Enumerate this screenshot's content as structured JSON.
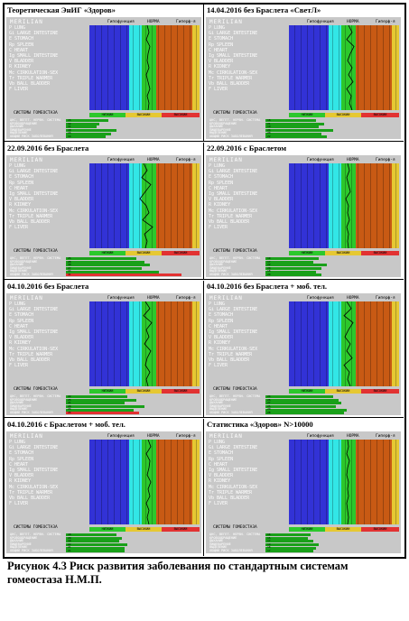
{
  "panel_text": {
    "meridian_head": "MERILIAN",
    "hypo": "Гипофункция",
    "norm": "НОРМА",
    "hyper": "Гиперф-я",
    "systems_head": "СИСТЕМЫ ГОМЕОСТАЗА",
    "risk_low": "НИЗКИЙ",
    "risk_mid": "ВЫСОКИЙ",
    "risk_high": "ВЫСОКИЙ",
    "risk_title": "РИСК ЗАБОЛЕВАНИЯ",
    "meridians": [
      "P LUNG",
      "Gi LARGE INTESTINE",
      "E STOMACH",
      "Rp SPLEEN",
      "C HEART",
      "Ig SMALL INTESTINE",
      "V BLADDER",
      "R KIDNEY",
      "Mc CIRKULATION-SEX",
      "Tr TRIPLE WARMER",
      "Vb BALL BLADDER",
      "F LIVER"
    ],
    "systems": [
      "ЦНС, ВЕГЕТ. НЕРВН. СИСТЕМА",
      "КРОВООБРАЩЕНИЕ",
      "ДЫХАНИЕ",
      "ПИЩЕВАРЕНИЕ",
      "ВЫДЕЛЕНИЕ",
      "ОБЩИЙ РИСК ЗАБОЛЕВАНИЯ"
    ]
  },
  "cells": [
    {
      "title": "Теоретическая ЭнИГ «Здоров»",
      "values": [
        "15",
        "12",
        "11",
        "18",
        "16",
        "14"
      ]
    },
    {
      "title": "14.04.2016 без Браслета «СветЛ»",
      "values": [
        "18",
        "21",
        "19",
        "24",
        "20",
        "22"
      ]
    },
    {
      "title": "22.09.2016 без Браслета",
      "values": [
        "25",
        "28",
        "30",
        "27",
        "33",
        "41"
      ]
    },
    {
      "title": "22.09.2016 с Браслетом",
      "values": [
        "19",
        "17",
        "22",
        "20",
        "18",
        "20"
      ]
    },
    {
      "title": "04.10.2016 без Браслета",
      "values": [
        "22",
        "25",
        "21",
        "28",
        "24",
        "26"
      ]
    },
    {
      "title": "04.10.2016 без Браслета + моб. тел.",
      "values": [
        "24",
        "26",
        "27",
        "25",
        "29",
        "28"
      ]
    },
    {
      "title": "04.10.2016 с Браслетом + моб. тел.",
      "values": [
        "18",
        "20",
        "19",
        "22",
        "21",
        "21"
      ]
    },
    {
      "title": "Статистика «Здоров» N>10000",
      "values": [
        "16",
        "15",
        "17",
        "19",
        "18",
        "17"
      ]
    }
  ],
  "caption": "Рисунок 4.3  Риск развития заболевания по стандартным системам гомеостаза Н.М.П.",
  "colors": {
    "hypo_band": "#3232d6",
    "norm_low_band": "#32e6e6",
    "norm_band": "#2cc82c",
    "hyper_band": "#c85a14",
    "panel_bg": "#c8c8c8",
    "risk_bar": "#19a019"
  }
}
